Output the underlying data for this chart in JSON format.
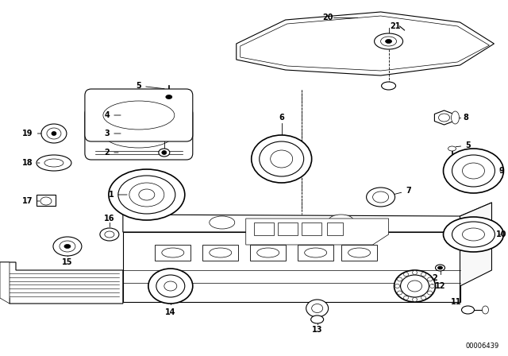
{
  "bg_color": "#ffffff",
  "fig_width": 6.4,
  "fig_height": 4.48,
  "watermark": "00006439",
  "line_color": "#000000",
  "label_color": "#000000"
}
